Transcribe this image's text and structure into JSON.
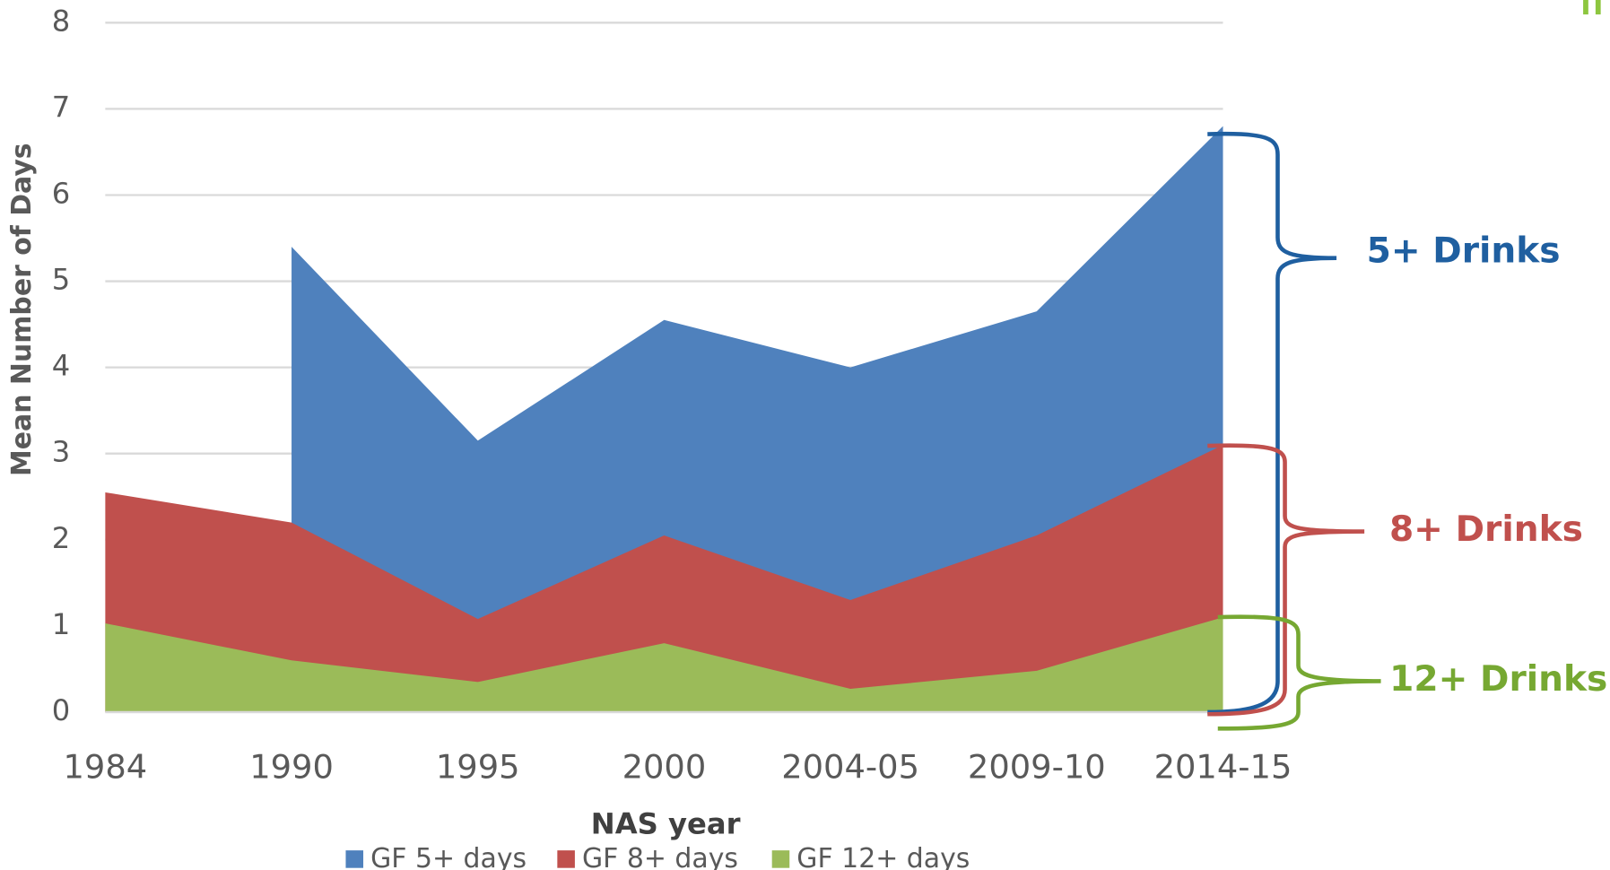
{
  "chart_data": {
    "type": "area",
    "x_label": "NAS year",
    "y_label": "Mean Number of Days",
    "categories": [
      "1984",
      "1990",
      "1995",
      "2000",
      "2004-05",
      "2009-10",
      "2014-15"
    ],
    "series": [
      {
        "name": "GF 5+ days",
        "color": "#4f81bd",
        "values": [
          null,
          5.4,
          3.15,
          4.55,
          4.0,
          4.65,
          6.8
        ]
      },
      {
        "name": "GF 8+ days",
        "color": "#c0504d",
        "values": [
          2.55,
          2.2,
          1.08,
          2.05,
          1.3,
          2.05,
          3.1
        ]
      },
      {
        "name": "GF 12+ days",
        "color": "#9bbb59",
        "values": [
          1.03,
          0.6,
          0.35,
          0.8,
          0.27,
          0.48,
          1.1
        ]
      }
    ],
    "ylim": [
      0,
      8
    ],
    "yticks": [
      0,
      1,
      2,
      3,
      4,
      5,
      6,
      7,
      8
    ],
    "grid": true,
    "annotations": [
      {
        "text": "5+ Drinks",
        "color": "#1f5fa0"
      },
      {
        "text": "8+ Drinks",
        "color": "#c0504d"
      },
      {
        "text": "12+ Drinks",
        "color": "#76a832"
      }
    ]
  }
}
